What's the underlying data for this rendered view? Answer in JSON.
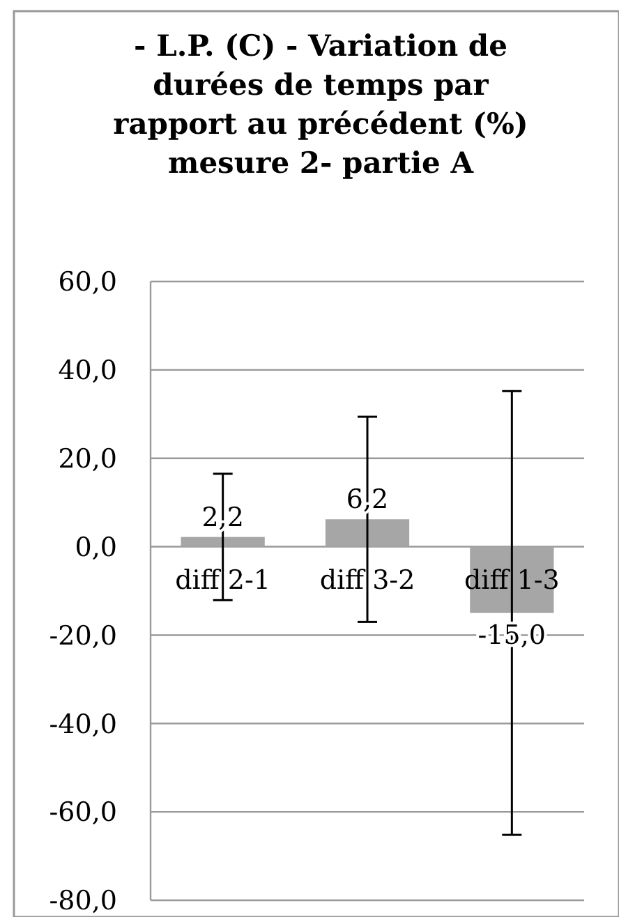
{
  "chart_data": {
    "type": "bar",
    "title": "- L.P. (C) - Variation de durées de temps par rapport au précédent (%) mesure 2- partie A",
    "categories": [
      "diff 2-1",
      "diff 3-2",
      "diff 1-3"
    ],
    "values": [
      2.2,
      6.2,
      -15.0
    ],
    "value_labels": [
      "2,2",
      "6,2",
      "-15,0"
    ],
    "errors": [
      14.3,
      23.2,
      50.2
    ],
    "color": "#a6a6a6",
    "ylim": [
      -80,
      60
    ],
    "yticks": [
      {
        "value": -80,
        "label": "-80,0"
      },
      {
        "value": -60,
        "label": "-60,0"
      },
      {
        "value": -40,
        "label": "-40,0"
      },
      {
        "value": -20,
        "label": "-20,0"
      },
      {
        "value": 0,
        "label": "0,0"
      },
      {
        "value": 20,
        "label": "20,0"
      },
      {
        "value": 40,
        "label": "40,0"
      },
      {
        "value": 60,
        "label": "60,0"
      }
    ],
    "grid": "y"
  }
}
